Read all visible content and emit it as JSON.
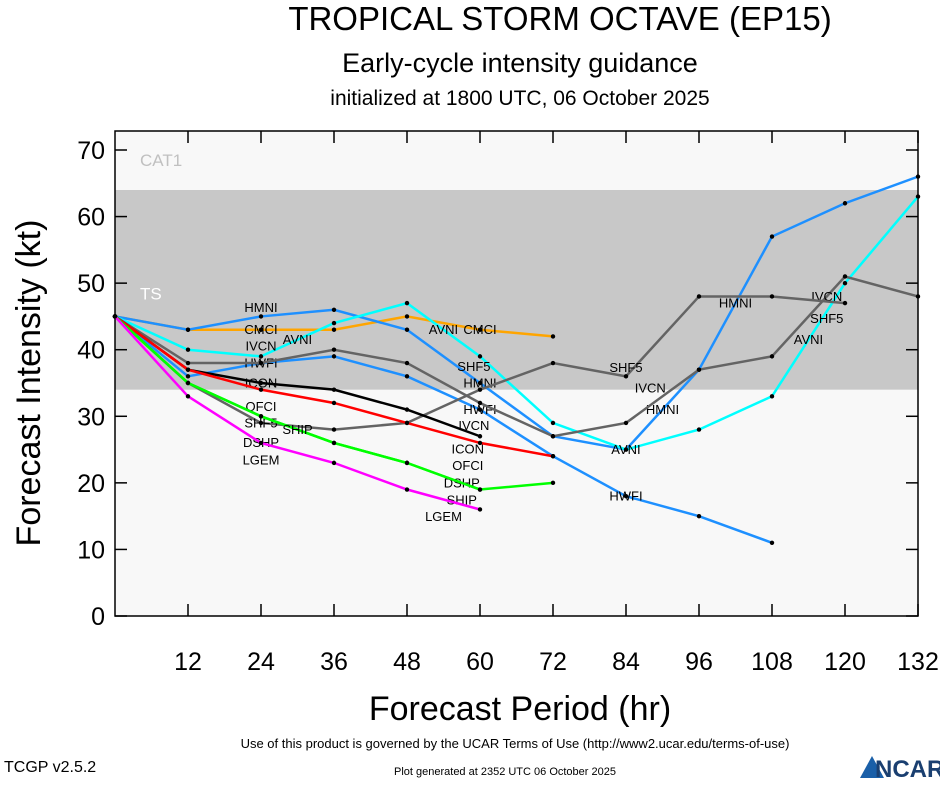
{
  "chart_data": {
    "type": "line",
    "title": "TROPICAL STORM OCTAVE (EP15)",
    "subtitle": "Early-cycle intensity guidance",
    "subtitle2": "initialized at 1800 UTC, 06 October 2025",
    "xlabel": "Forecast Period (hr)",
    "ylabel": "Forecast Intensity (kt)",
    "xlim": [
      0,
      132
    ],
    "ylim": [
      0,
      70
    ],
    "xticks": [
      12,
      24,
      36,
      48,
      60,
      72,
      84,
      96,
      108,
      120,
      132
    ],
    "yticks": [
      0,
      10,
      20,
      30,
      40,
      50,
      60,
      70
    ],
    "bands": [
      {
        "name": "TS",
        "from": 34,
        "to": 64,
        "color": "#c8c8c8"
      },
      {
        "name": "CAT1",
        "from": 64,
        "to": 83,
        "color": "#f8f8f8"
      }
    ],
    "series": [
      {
        "name": "CMCI",
        "color": "#ffa500",
        "x": [
          0,
          12,
          24,
          36,
          48,
          60,
          72
        ],
        "y": [
          45,
          43,
          43,
          43,
          45,
          43,
          42
        ],
        "labels": [
          24,
          60
        ]
      },
      {
        "name": "HMNI",
        "color": "#1e90ff",
        "x": [
          0,
          12,
          24,
          36,
          48,
          60,
          72,
          84,
          96,
          108,
          120,
          132
        ],
        "y": [
          45,
          43,
          45,
          46,
          43,
          35,
          27,
          25,
          37,
          57,
          62,
          66
        ],
        "labels": [
          24,
          60,
          90,
          102
        ]
      },
      {
        "name": "AVNI",
        "color": "#00ffff",
        "x": [
          0,
          12,
          24,
          36,
          48,
          60,
          72,
          84,
          96,
          108,
          120,
          132
        ],
        "y": [
          45,
          40,
          39,
          44,
          47,
          39,
          29,
          25,
          28,
          33,
          50,
          63
        ],
        "labels": [
          30,
          54,
          84,
          114
        ]
      },
      {
        "name": "HWFI",
        "color": "#1e90ff",
        "x": [
          0,
          12,
          24,
          36,
          48,
          60,
          72,
          84,
          96,
          108
        ],
        "y": [
          45,
          36,
          38,
          39,
          36,
          31,
          24,
          18,
          15,
          11
        ],
        "labels": [
          24,
          60,
          84
        ]
      },
      {
        "name": "IVCN",
        "color": "#646464",
        "x": [
          0,
          12,
          24,
          36,
          48,
          60,
          72,
          84,
          96,
          108,
          120,
          132
        ],
        "y": [
          45,
          38,
          38,
          40,
          38,
          32,
          27,
          29,
          37,
          39,
          51,
          48
        ],
        "labels": [
          24,
          58,
          88,
          117
        ]
      },
      {
        "name": "SHF5",
        "color": "#646464",
        "x": [
          0,
          12,
          24,
          36,
          48,
          60,
          72,
          84,
          96,
          108,
          120
        ],
        "y": [
          45,
          35,
          29,
          28,
          29,
          34,
          38,
          36,
          48,
          48,
          47
        ],
        "labels": [
          24,
          57,
          84,
          117
        ]
      },
      {
        "name": "ICON",
        "color": "#000000",
        "x": [
          0,
          12,
          24,
          36,
          48,
          60
        ],
        "y": [
          45,
          37,
          35,
          34,
          31,
          27
        ],
        "labels": [
          24,
          58
        ]
      },
      {
        "name": "OFCI",
        "color": "#ff0000",
        "x": [
          0,
          12,
          24,
          36,
          48,
          60,
          72
        ],
        "y": [
          45,
          37,
          34,
          32,
          29,
          26,
          24
        ],
        "labels": [
          24,
          58
        ]
      },
      {
        "name": "DSHP",
        "color": "#00ff00",
        "x": [
          0,
          12,
          24,
          36,
          48,
          60,
          72
        ],
        "y": [
          45,
          35,
          30,
          26,
          23,
          19,
          20
        ],
        "labels": [
          24,
          57
        ]
      },
      {
        "name": "SHIP",
        "color": "#00ff00",
        "x": [
          0,
          12,
          24,
          36,
          48,
          60
        ],
        "y": [
          45,
          35,
          30,
          26,
          23,
          19
        ],
        "labels": [
          24,
          57
        ]
      },
      {
        "name": "LGEM",
        "color": "#ff00ff",
        "x": [
          0,
          12,
          24,
          36,
          48,
          60
        ],
        "y": [
          45,
          33,
          26,
          23,
          19,
          16
        ],
        "labels": [
          24,
          54
        ]
      }
    ]
  },
  "footer": {
    "terms": "Use of this product is governed by the UCAR Terms of Use (http://www2.ucar.edu/terms-of-use)",
    "version": "TCGP v2.5.2",
    "generated": "Plot generated at 2352 UTC   06 October 2025",
    "logo": "NCAR"
  }
}
